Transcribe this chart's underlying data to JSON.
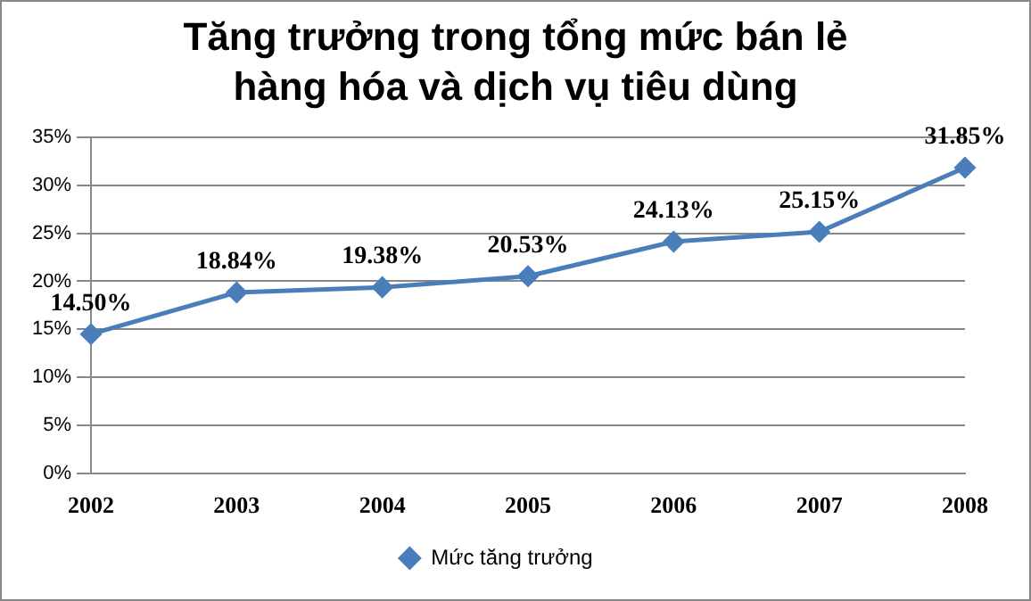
{
  "chart_data": {
    "type": "line",
    "title": "Tăng trưởng trong tổng mức bán lẻ hàng hóa và dịch vụ tiêu dùng",
    "categories": [
      "2002",
      "2003",
      "2004",
      "2005",
      "2006",
      "2007",
      "2008"
    ],
    "series": [
      {
        "name": "Mức tăng trưởng",
        "color": "#4a7ebb",
        "values": [
          14.5,
          18.84,
          19.38,
          20.53,
          24.13,
          25.15,
          31.85
        ],
        "value_labels": [
          "14.50%",
          "18.84%",
          "19.38%",
          "20.53%",
          "24.13%",
          "25.15%",
          "31.85%"
        ]
      }
    ],
    "ylim": [
      0,
      35
    ],
    "yticks": [
      {
        "value": 0,
        "label": "0%"
      },
      {
        "value": 5,
        "label": "5%"
      },
      {
        "value": 10,
        "label": "10%"
      },
      {
        "value": 15,
        "label": "15%"
      },
      {
        "value": 20,
        "label": "20%"
      },
      {
        "value": 25,
        "label": "25%"
      },
      {
        "value": 30,
        "label": "30%"
      },
      {
        "value": 35,
        "label": "35%"
      }
    ],
    "grid": "y",
    "legend": "bottom",
    "marker": "diamond",
    "line_style": "solid"
  }
}
